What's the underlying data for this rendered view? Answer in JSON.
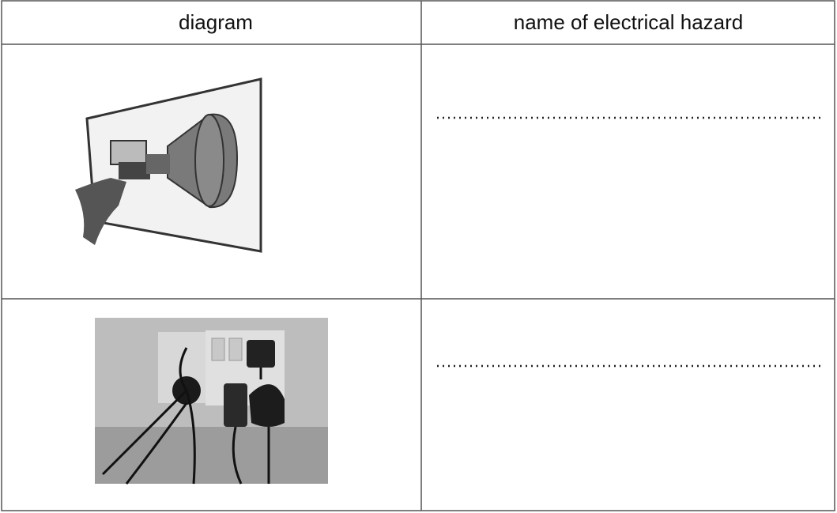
{
  "table": {
    "header": [
      "diagram",
      "name of electrical hazard"
    ]
  }
}
